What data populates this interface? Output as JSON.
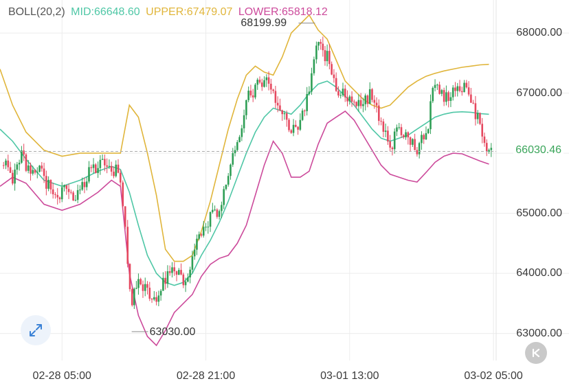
{
  "legend": {
    "name": "BOLL(20,2)",
    "mid": "MID:66648.60",
    "upper": "UPPER:67479.07",
    "lower": "LOWER:65818.12"
  },
  "current_price_label": "66030.46",
  "annotations": {
    "high": "68199.99",
    "low": "63030.00"
  },
  "icons": {
    "expand": "expand-icon",
    "back": "skip-back-icon"
  },
  "colors": {
    "up": "#2e9e55",
    "down": "#e5485f",
    "mid": "#4fc7a6",
    "upper": "#e0b53a",
    "lower": "#cc4a9b",
    "grid": "#ececec",
    "dash": "#aaaaaa",
    "price_label": "#3aa55a"
  },
  "chart_data": {
    "type": "candlestick",
    "indicator": "BOLL(20,2)",
    "y_ticks": [
      "63000.00",
      "64000.00",
      "65000.00",
      "66000.00",
      "67000.00",
      "68000.00"
    ],
    "y_tick_values": [
      63000,
      64000,
      65000,
      66000,
      67000,
      68000
    ],
    "x_ticks": [
      "02-28 05:00",
      "02-28 21:00",
      "03-01 13:00",
      "03-02 05:00"
    ],
    "x_tick_hours": [
      5,
      21,
      37,
      53
    ],
    "ylim": [
      62550,
      68550
    ],
    "xlim_hours": [
      -1.9,
      53.3
    ],
    "current_price": 66030.46,
    "high": {
      "price": 68199.99,
      "hour": 33.3
    },
    "low": {
      "price": 63030.0,
      "hour": 12.6
    },
    "close": [
      [
        -1.5,
        65880
      ],
      [
        -0.5,
        65620
      ],
      [
        0.5,
        65950
      ],
      [
        1.5,
        65700
      ],
      [
        2.5,
        65720
      ],
      [
        3.5,
        65450
      ],
      [
        4.5,
        65260
      ],
      [
        5.5,
        65380
      ],
      [
        6.5,
        65330
      ],
      [
        7.5,
        65520
      ],
      [
        8.5,
        65790
      ],
      [
        9.5,
        65790
      ],
      [
        10.5,
        65740
      ],
      [
        11.5,
        65620
      ],
      [
        12.3,
        64200
      ],
      [
        12.8,
        63500
      ],
      [
        13.5,
        63900
      ],
      [
        14.5,
        63700
      ],
      [
        15.5,
        63600
      ],
      [
        16.5,
        63950
      ],
      [
        17.5,
        64000
      ],
      [
        18.5,
        63900
      ],
      [
        19.5,
        64200
      ],
      [
        20.5,
        64700
      ],
      [
        21.5,
        64900
      ],
      [
        22.5,
        65100
      ],
      [
        23.5,
        65700
      ],
      [
        24.5,
        66200
      ],
      [
        25.5,
        66850
      ],
      [
        26.5,
        67100
      ],
      [
        27.5,
        67200
      ],
      [
        28.5,
        67000
      ],
      [
        29.5,
        66750
      ],
      [
        30.5,
        66400
      ],
      [
        31.5,
        66500
      ],
      [
        32.5,
        67000
      ],
      [
        33.3,
        67850
      ],
      [
        34.5,
        67600
      ],
      [
        35.5,
        67000
      ],
      [
        36.5,
        67000
      ],
      [
        37.5,
        66800
      ],
      [
        38.5,
        66850
      ],
      [
        39.5,
        67000
      ],
      [
        40.5,
        66500
      ],
      [
        41.5,
        66100
      ],
      [
        42.5,
        66400
      ],
      [
        43.5,
        66300
      ],
      [
        44.5,
        66100
      ],
      [
        45.5,
        66300
      ],
      [
        46.5,
        67200
      ],
      [
        47.5,
        66900
      ],
      [
        48.5,
        67000
      ],
      [
        49.5,
        67100
      ],
      [
        50.5,
        66900
      ],
      [
        51.5,
        66450
      ],
      [
        52.5,
        66030
      ]
    ],
    "mid": [
      [
        -1.9,
        66400
      ],
      [
        -0.5,
        66200
      ],
      [
        1,
        65900
      ],
      [
        3,
        65550
      ],
      [
        5,
        65450
      ],
      [
        7,
        65550
      ],
      [
        9,
        65700
      ],
      [
        10.5,
        65780
      ],
      [
        11.5,
        65730
      ],
      [
        12.5,
        65350
      ],
      [
        13.5,
        64800
      ],
      [
        14.5,
        64300
      ],
      [
        15.5,
        64000
      ],
      [
        16.5,
        63850
      ],
      [
        17.5,
        63800
      ],
      [
        18.5,
        63850
      ],
      [
        19.5,
        64000
      ],
      [
        20.5,
        64300
      ],
      [
        21.5,
        64550
      ],
      [
        22.5,
        64850
      ],
      [
        23.5,
        65200
      ],
      [
        24.5,
        65600
      ],
      [
        25.5,
        66000
      ],
      [
        26.5,
        66350
      ],
      [
        27.5,
        66600
      ],
      [
        28.5,
        66750
      ],
      [
        29.5,
        66700
      ],
      [
        30.5,
        66650
      ],
      [
        31.5,
        66800
      ],
      [
        32.5,
        67000
      ],
      [
        33.5,
        67150
      ],
      [
        34.5,
        67200
      ],
      [
        35.5,
        67100
      ],
      [
        36.5,
        66950
      ],
      [
        37.5,
        66800
      ],
      [
        38.5,
        66600
      ],
      [
        39.5,
        66400
      ],
      [
        40.5,
        66250
      ],
      [
        41.5,
        66200
      ],
      [
        42.5,
        66250
      ],
      [
        43.5,
        66300
      ],
      [
        44.5,
        66400
      ],
      [
        45.5,
        66500
      ],
      [
        46.5,
        66600
      ],
      [
        47.5,
        66650
      ],
      [
        48.5,
        66680
      ],
      [
        49.5,
        66690
      ],
      [
        50.5,
        66680
      ],
      [
        51.5,
        66660
      ],
      [
        52.5,
        66648.6
      ]
    ],
    "upper": [
      [
        -1.9,
        67400
      ],
      [
        -0.5,
        66800
      ],
      [
        1,
        66350
      ],
      [
        3,
        66050
      ],
      [
        5,
        65950
      ],
      [
        7,
        66000
      ],
      [
        9,
        66000
      ],
      [
        10.5,
        66000
      ],
      [
        11.5,
        66000
      ],
      [
        12.5,
        66800
      ],
      [
        13.5,
        66600
      ],
      [
        14.5,
        66000
      ],
      [
        15.5,
        65300
      ],
      [
        16.5,
        64400
      ],
      [
        17.5,
        64200
      ],
      [
        18.5,
        64200
      ],
      [
        19.5,
        64300
      ],
      [
        20.5,
        64700
      ],
      [
        21.5,
        65200
      ],
      [
        22.5,
        65800
      ],
      [
        23.5,
        66400
      ],
      [
        24.5,
        66900
      ],
      [
        25.5,
        67300
      ],
      [
        26.5,
        67450
      ],
      [
        27.5,
        67350
      ],
      [
        28.5,
        67300
      ],
      [
        29.5,
        67600
      ],
      [
        30.5,
        68000
      ],
      [
        31.5,
        68150
      ],
      [
        32.5,
        68300
      ],
      [
        33.5,
        68050
      ],
      [
        34.5,
        67900
      ],
      [
        35.5,
        67550
      ],
      [
        36.5,
        67200
      ],
      [
        37.5,
        67050
      ],
      [
        38.5,
        66900
      ],
      [
        39.5,
        66800
      ],
      [
        40.5,
        66750
      ],
      [
        41.5,
        66800
      ],
      [
        42.5,
        66950
      ],
      [
        43.5,
        67100
      ],
      [
        44.5,
        67200
      ],
      [
        45.5,
        67280
      ],
      [
        46.5,
        67330
      ],
      [
        47.5,
        67370
      ],
      [
        48.5,
        67400
      ],
      [
        49.5,
        67430
      ],
      [
        50.5,
        67450
      ],
      [
        51.5,
        67470
      ],
      [
        52.5,
        67479.07
      ]
    ],
    "lower": [
      [
        -1.9,
        65450
      ],
      [
        -0.5,
        65600
      ],
      [
        1,
        65500
      ],
      [
        3,
        65150
      ],
      [
        5,
        65050
      ],
      [
        7,
        65150
      ],
      [
        9,
        65350
      ],
      [
        10.5,
        65550
      ],
      [
        11.5,
        65450
      ],
      [
        12.5,
        64000
      ],
      [
        13.5,
        63300
      ],
      [
        14.5,
        62950
      ],
      [
        15.5,
        62800
      ],
      [
        16.5,
        63050
      ],
      [
        17.5,
        63350
      ],
      [
        18.5,
        63500
      ],
      [
        19.5,
        63650
      ],
      [
        20.5,
        63950
      ],
      [
        21.5,
        64150
      ],
      [
        22.5,
        64250
      ],
      [
        23.5,
        64300
      ],
      [
        24.5,
        64500
      ],
      [
        25.5,
        64800
      ],
      [
        26.5,
        65300
      ],
      [
        27.5,
        65800
      ],
      [
        28.5,
        66200
      ],
      [
        29.5,
        66000
      ],
      [
        30.5,
        65600
      ],
      [
        31.5,
        65600
      ],
      [
        32.5,
        65700
      ],
      [
        33.5,
        66150
      ],
      [
        34.5,
        66500
      ],
      [
        35.5,
        66600
      ],
      [
        36.5,
        66700
      ],
      [
        37.5,
        66550
      ],
      [
        38.5,
        66300
      ],
      [
        39.5,
        66050
      ],
      [
        40.5,
        65800
      ],
      [
        41.5,
        65650
      ],
      [
        42.5,
        65600
      ],
      [
        43.5,
        65550
      ],
      [
        44.5,
        65520
      ],
      [
        45.5,
        65680
      ],
      [
        46.5,
        65850
      ],
      [
        47.5,
        65950
      ],
      [
        48.5,
        66000
      ],
      [
        49.5,
        65990
      ],
      [
        50.5,
        65930
      ],
      [
        51.5,
        65870
      ],
      [
        52.5,
        65818.12
      ]
    ]
  }
}
